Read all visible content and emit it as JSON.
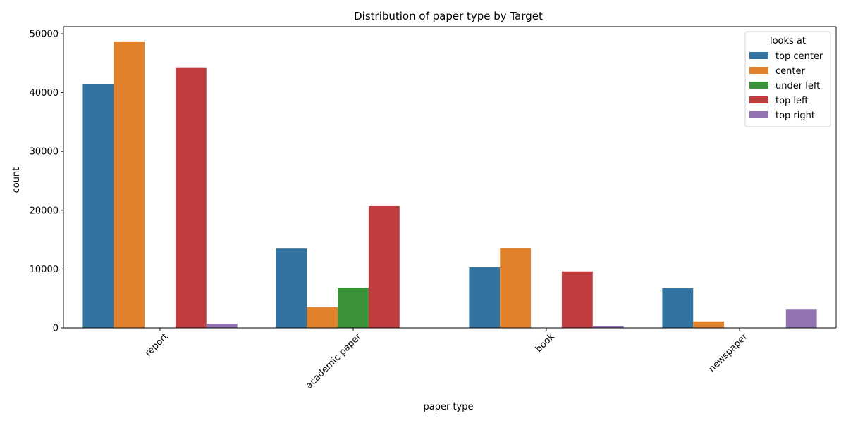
{
  "chart_data": {
    "type": "bar",
    "title": "Distribution of paper type by Target",
    "xlabel": "paper type",
    "ylabel": "count",
    "ylim": [
      0,
      51200
    ],
    "yticks": [
      0,
      10000,
      20000,
      30000,
      40000,
      50000
    ],
    "categories": [
      "report",
      "academic paper",
      "book",
      "newspaper"
    ],
    "legend": {
      "title": "looks at",
      "placement": "top-right"
    },
    "grid": false,
    "series": [
      {
        "name": "top center",
        "color": "#3274a1",
        "values": [
          41400,
          13500,
          10300,
          6700
        ]
      },
      {
        "name": "center",
        "color": "#e1812c",
        "values": [
          48700,
          3500,
          13600,
          1100
        ]
      },
      {
        "name": "under left",
        "color": "#3a923a",
        "values": [
          0,
          6800,
          0,
          0
        ]
      },
      {
        "name": "top left",
        "color": "#c03d3e",
        "values": [
          44300,
          20700,
          9600,
          0
        ]
      },
      {
        "name": "top right",
        "color": "#9372b2",
        "values": [
          700,
          0,
          250,
          3200
        ]
      }
    ]
  }
}
